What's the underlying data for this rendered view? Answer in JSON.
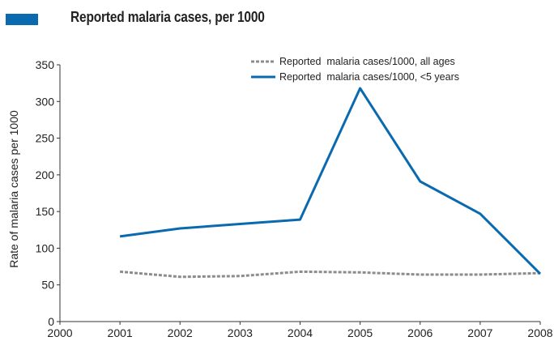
{
  "header": {
    "title": "Reported malaria cases, per 1000",
    "swatch_color": "#0a6ab0"
  },
  "chart_data": {
    "type": "line",
    "title": "Reported malaria cases, per 1000",
    "xlabel": "",
    "ylabel": "Rate of malaria cases per 1000",
    "x": [
      2001,
      2002,
      2003,
      2004,
      2005,
      2006,
      2007,
      2008
    ],
    "x_ticks": [
      2000,
      2001,
      2002,
      2003,
      2004,
      2005,
      2006,
      2007,
      2008
    ],
    "y_ticks": [
      0,
      50,
      100,
      150,
      200,
      250,
      300,
      350
    ],
    "xlim": [
      2000,
      2008
    ],
    "ylim": [
      0,
      350
    ],
    "grid": false,
    "legend_position": "top-center",
    "series": [
      {
        "name": "Reported  malaria cases/1000, all ages",
        "values": [
          68,
          61,
          62,
          68,
          67,
          64,
          64,
          66
        ],
        "color": "#8c8c8c",
        "style": "dashed"
      },
      {
        "name": "Reported  malaria cases/1000, <5 years",
        "values": [
          116,
          127,
          133,
          139,
          318,
          191,
          147,
          65
        ],
        "color": "#0a6ab0",
        "style": "solid"
      }
    ]
  }
}
